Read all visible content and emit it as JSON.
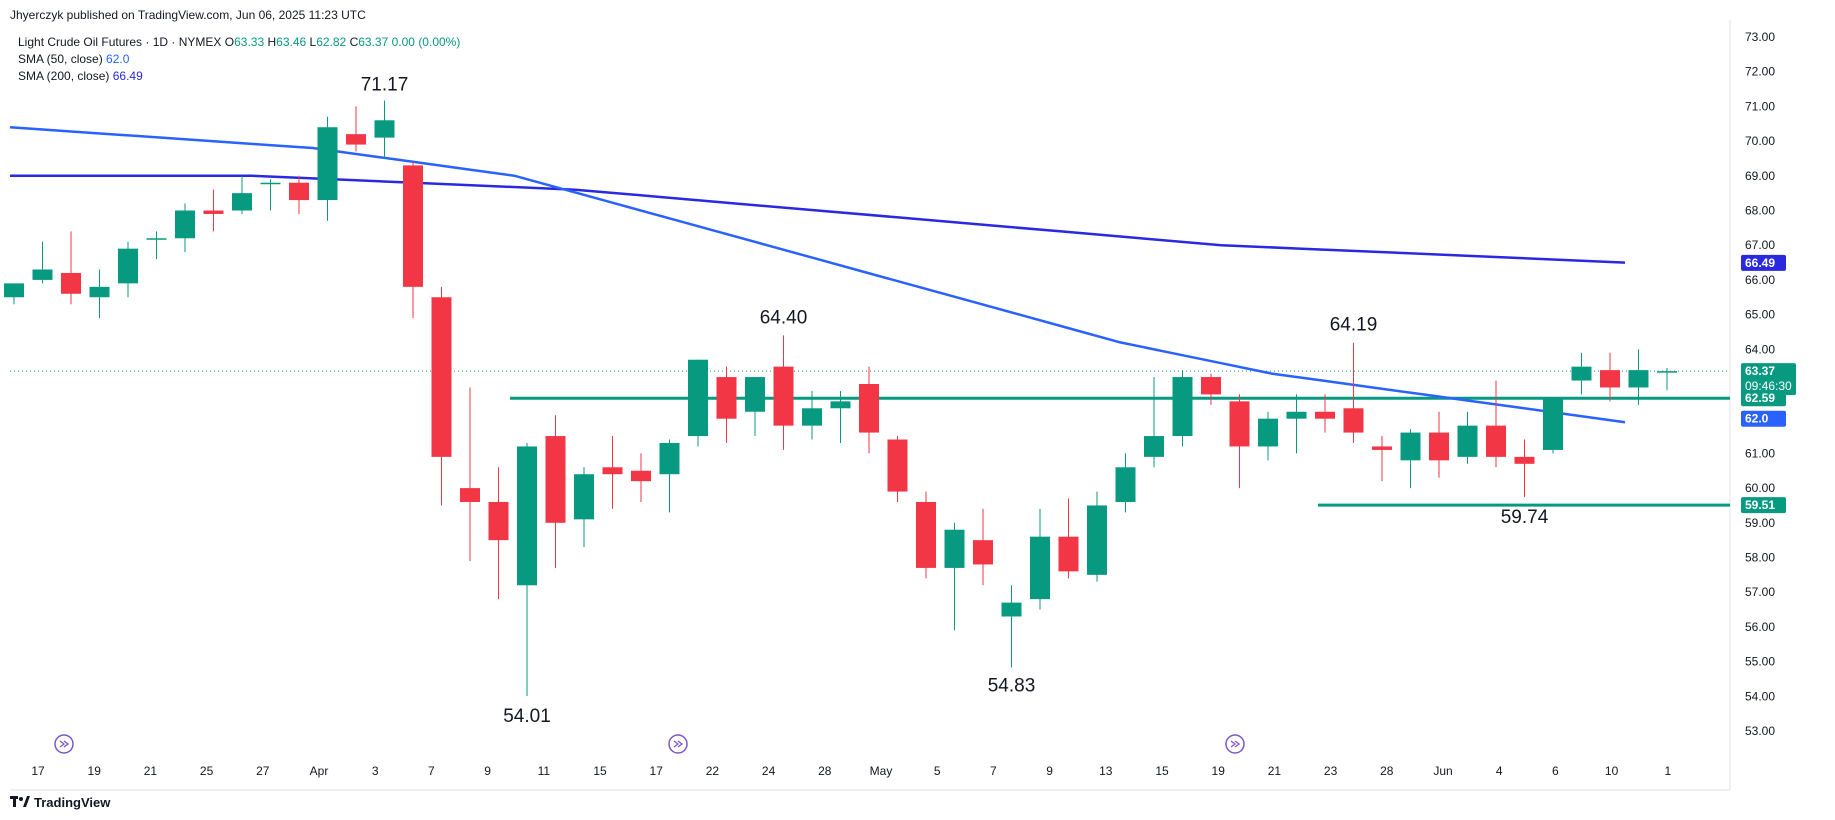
{
  "publisher": "Jhyerczyk published on TradingView.com, Jun 06, 2025 11:23 UTC",
  "legend": {
    "symbol": "Light Crude Oil Futures · 1D · NYMEX",
    "o_label": "O",
    "o": "63.33",
    "h_label": "H",
    "h": "63.46",
    "l_label": "L",
    "l": "62.82",
    "c_label": "C",
    "c": "63.37",
    "change": "0.00 (0.00%)",
    "sma50_label": "SMA (50, close)",
    "sma50_value": "62.0",
    "sma200_label": "SMA (200, close)",
    "sma200_value": "66.49"
  },
  "footer": {
    "brand": "TradingView"
  },
  "colors": {
    "up": "#089981",
    "down": "#f23645",
    "sma50": "#2962ff",
    "sma200": "#2929e0",
    "hline": "#089981"
  },
  "chart_data": {
    "type": "candlestick",
    "y_range": [
      52.5,
      73.2
    ],
    "y_ticks": [
      "73.00",
      "72.00",
      "71.00",
      "70.00",
      "69.00",
      "68.00",
      "67.00",
      "66.00",
      "65.00",
      "64.00",
      "63.00",
      "62.00",
      "61.00",
      "60.00",
      "59.00",
      "58.00",
      "57.00",
      "56.00",
      "55.00",
      "54.00",
      "53.00"
    ],
    "x_ticks": [
      "17",
      "19",
      "21",
      "25",
      "27",
      "Apr",
      "3",
      "7",
      "9",
      "11",
      "15",
      "17",
      "22",
      "24",
      "28",
      "May",
      "5",
      "7",
      "9",
      "13",
      "15",
      "19",
      "21",
      "23",
      "28",
      "Jun",
      "4",
      "6",
      "10",
      "1"
    ],
    "candles": [
      {
        "o": 65.5,
        "h": 65.8,
        "l": 65.3,
        "c": 65.9
      },
      {
        "o": 66.0,
        "h": 67.1,
        "l": 65.9,
        "c": 66.3
      },
      {
        "o": 66.2,
        "h": 67.4,
        "l": 65.3,
        "c": 65.6
      },
      {
        "o": 65.5,
        "h": 66.3,
        "l": 64.9,
        "c": 65.8
      },
      {
        "o": 65.9,
        "h": 67.1,
        "l": 65.5,
        "c": 66.9
      },
      {
        "o": 67.2,
        "h": 67.4,
        "l": 66.6,
        "c": 67.2
      },
      {
        "o": 67.2,
        "h": 68.2,
        "l": 66.8,
        "c": 68.0
      },
      {
        "o": 68.0,
        "h": 68.6,
        "l": 67.4,
        "c": 67.9
      },
      {
        "o": 68.0,
        "h": 69.0,
        "l": 67.9,
        "c": 68.5
      },
      {
        "o": 68.8,
        "h": 68.9,
        "l": 68.0,
        "c": 68.8
      },
      {
        "o": 68.8,
        "h": 69.0,
        "l": 67.9,
        "c": 68.3
      },
      {
        "o": 68.3,
        "h": 70.7,
        "l": 67.7,
        "c": 70.4
      },
      {
        "o": 70.2,
        "h": 71.0,
        "l": 69.7,
        "c": 69.9
      },
      {
        "o": 70.1,
        "h": 71.17,
        "l": 69.5,
        "c": 70.6
      },
      {
        "o": 69.3,
        "h": 69.4,
        "l": 64.9,
        "c": 65.8
      },
      {
        "o": 65.5,
        "h": 65.8,
        "l": 59.5,
        "c": 60.9
      },
      {
        "o": 60.0,
        "h": 62.9,
        "l": 57.9,
        "c": 59.6
      },
      {
        "o": 59.6,
        "h": 60.6,
        "l": 56.8,
        "c": 58.5
      },
      {
        "o": 57.2,
        "h": 61.3,
        "l": 54.01,
        "c": 61.2
      },
      {
        "o": 61.5,
        "h": 62.1,
        "l": 57.7,
        "c": 59.0
      },
      {
        "o": 59.1,
        "h": 60.6,
        "l": 58.3,
        "c": 60.4
      },
      {
        "o": 60.6,
        "h": 61.5,
        "l": 59.4,
        "c": 60.4
      },
      {
        "o": 60.5,
        "h": 61.0,
        "l": 59.6,
        "c": 60.2
      },
      {
        "o": 60.4,
        "h": 61.4,
        "l": 59.3,
        "c": 61.3
      },
      {
        "o": 61.5,
        "h": 63.7,
        "l": 61.2,
        "c": 63.7
      },
      {
        "o": 63.2,
        "h": 63.5,
        "l": 61.3,
        "c": 62.0
      },
      {
        "o": 62.2,
        "h": 63.2,
        "l": 61.5,
        "c": 63.2
      },
      {
        "o": 63.5,
        "h": 64.4,
        "l": 61.1,
        "c": 61.8
      },
      {
        "o": 61.8,
        "h": 62.8,
        "l": 61.4,
        "c": 62.3
      },
      {
        "o": 62.3,
        "h": 62.8,
        "l": 61.3,
        "c": 62.5
      },
      {
        "o": 63.0,
        "h": 63.5,
        "l": 61.0,
        "c": 61.6
      },
      {
        "o": 61.4,
        "h": 61.5,
        "l": 59.6,
        "c": 59.9
      },
      {
        "o": 59.6,
        "h": 59.9,
        "l": 57.4,
        "c": 57.7
      },
      {
        "o": 57.7,
        "h": 59.0,
        "l": 55.9,
        "c": 58.8
      },
      {
        "o": 58.5,
        "h": 59.4,
        "l": 57.2,
        "c": 57.8
      },
      {
        "o": 56.3,
        "h": 57.2,
        "l": 54.83,
        "c": 56.7
      },
      {
        "o": 56.8,
        "h": 59.4,
        "l": 56.5,
        "c": 58.6
      },
      {
        "o": 58.6,
        "h": 59.7,
        "l": 57.4,
        "c": 57.6
      },
      {
        "o": 57.5,
        "h": 59.9,
        "l": 57.3,
        "c": 59.5
      },
      {
        "o": 59.6,
        "h": 61.0,
        "l": 59.3,
        "c": 60.6
      },
      {
        "o": 60.9,
        "h": 63.2,
        "l": 60.6,
        "c": 61.5
      },
      {
        "o": 61.5,
        "h": 63.4,
        "l": 61.2,
        "c": 63.2
      },
      {
        "o": 63.2,
        "h": 63.3,
        "l": 62.4,
        "c": 62.7
      },
      {
        "o": 62.5,
        "h": 62.7,
        "l": 60.0,
        "c": 61.2
      },
      {
        "o": 61.2,
        "h": 62.2,
        "l": 60.8,
        "c": 62.0
      },
      {
        "o": 62.0,
        "h": 62.7,
        "l": 61.0,
        "c": 62.2
      },
      {
        "o": 62.2,
        "h": 62.7,
        "l": 61.6,
        "c": 62.0
      },
      {
        "o": 62.3,
        "h": 64.19,
        "l": 61.3,
        "c": 61.6
      },
      {
        "o": 61.2,
        "h": 61.5,
        "l": 60.2,
        "c": 61.1
      },
      {
        "o": 60.8,
        "h": 61.7,
        "l": 60.0,
        "c": 61.6
      },
      {
        "o": 61.6,
        "h": 62.2,
        "l": 60.3,
        "c": 60.8
      },
      {
        "o": 60.9,
        "h": 62.2,
        "l": 60.7,
        "c": 61.8
      },
      {
        "o": 61.8,
        "h": 63.1,
        "l": 60.6,
        "c": 60.9
      },
      {
        "o": 60.9,
        "h": 61.4,
        "l": 59.74,
        "c": 60.7
      },
      {
        "o": 61.1,
        "h": 62.5,
        "l": 61.0,
        "c": 62.6
      },
      {
        "o": 63.1,
        "h": 63.9,
        "l": 62.7,
        "c": 63.5
      },
      {
        "o": 63.4,
        "h": 63.9,
        "l": 62.5,
        "c": 62.9
      },
      {
        "o": 62.9,
        "h": 64.0,
        "l": 62.4,
        "c": 63.4
      },
      {
        "o": 63.33,
        "h": 63.46,
        "l": 62.82,
        "c": 63.37
      }
    ],
    "sma50": [
      70.4,
      70.3,
      70.2,
      70.1,
      70.0,
      69.9,
      69.8,
      69.6,
      69.4,
      69.2,
      69.0,
      68.6,
      68.2,
      67.8,
      67.4,
      67.0,
      66.6,
      66.2,
      65.8,
      65.4,
      65.0,
      64.6,
      64.2,
      63.9,
      63.6,
      63.3,
      63.1,
      62.9,
      62.7,
      62.5,
      62.3,
      62.1,
      61.9
    ],
    "sma200": [
      69.0,
      69.0,
      69.0,
      69.0,
      68.9,
      68.8,
      68.7,
      68.6,
      68.4,
      68.2,
      68.0,
      67.8,
      67.6,
      67.4,
      67.2,
      67.0,
      66.9,
      66.8,
      66.7,
      66.6,
      66.5
    ],
    "hlines": [
      {
        "value": 62.59,
        "label": "62.59"
      },
      {
        "value": 59.51,
        "label": "59.51"
      }
    ],
    "current_price": "63.37",
    "countdown": "09:46:30",
    "sma50_tag": "62.0",
    "sma200_tag": "66.49",
    "annotations": [
      "71.17",
      "64.40",
      "54.01",
      "54.83",
      "64.19",
      "59.74"
    ]
  }
}
